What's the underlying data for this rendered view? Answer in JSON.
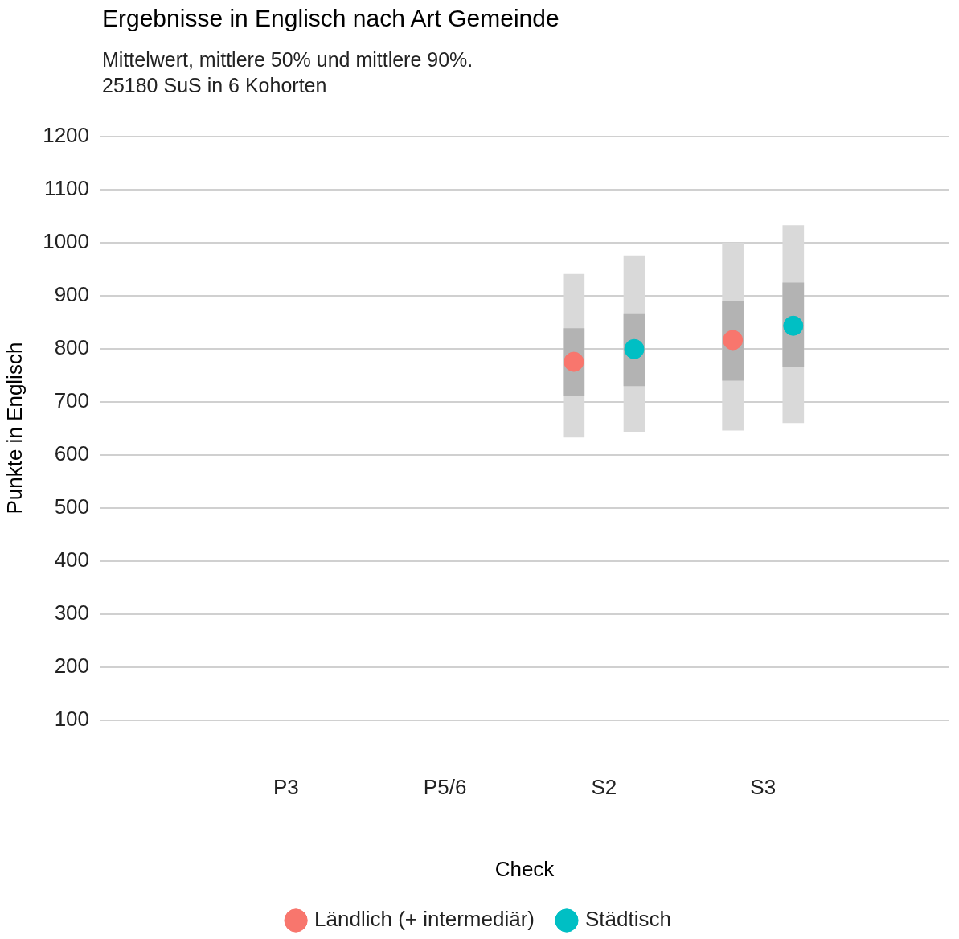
{
  "chart_data": {
    "type": "scatter",
    "title": "Ergebnisse in Englisch nach Art Gemeinde",
    "subtitle": "Mittelwert, mittlere 50% und mittlere 90%.\n25180 SuS in 6 Kohorten",
    "xlabel": "Check",
    "ylabel": "Punkte in Englisch",
    "categories": [
      "P3",
      "P5/6",
      "S2",
      "S3"
    ],
    "ylim": [
      100,
      1200
    ],
    "yticks": [
      100,
      200,
      300,
      400,
      500,
      600,
      700,
      800,
      900,
      1000,
      1100,
      1200
    ],
    "grid": "y",
    "legend": "bottom",
    "marker": "circle",
    "series": [
      {
        "type": "bar",
        "color": "#d9d9d9",
        "base": [
          null,
          null,
          633,
          646
        ],
        "values": [
          null,
          null,
          307,
          353
        ]
      },
      {
        "type": "bar",
        "color": "#b3b3b3",
        "base": [
          null,
          null,
          711,
          740
        ],
        "values": [
          null,
          null,
          127,
          149
        ]
      },
      {
        "name": "Ländlich (+ intermediär)",
        "color": "#f8766d",
        "values": [
          null,
          null,
          775,
          816
        ]
      },
      {
        "type": "bar",
        "color": "#d9d9d9",
        "base": [
          null,
          null,
          644,
          660
        ],
        "values": [
          null,
          null,
          331,
          372
        ]
      },
      {
        "type": "bar",
        "color": "#b3b3b3",
        "base": [
          null,
          null,
          730,
          766
        ],
        "values": [
          null,
          null,
          136,
          158
        ]
      },
      {
        "name": "Städtisch",
        "color": "#00bfc4",
        "values": [
          null,
          null,
          799,
          843
        ]
      }
    ]
  }
}
